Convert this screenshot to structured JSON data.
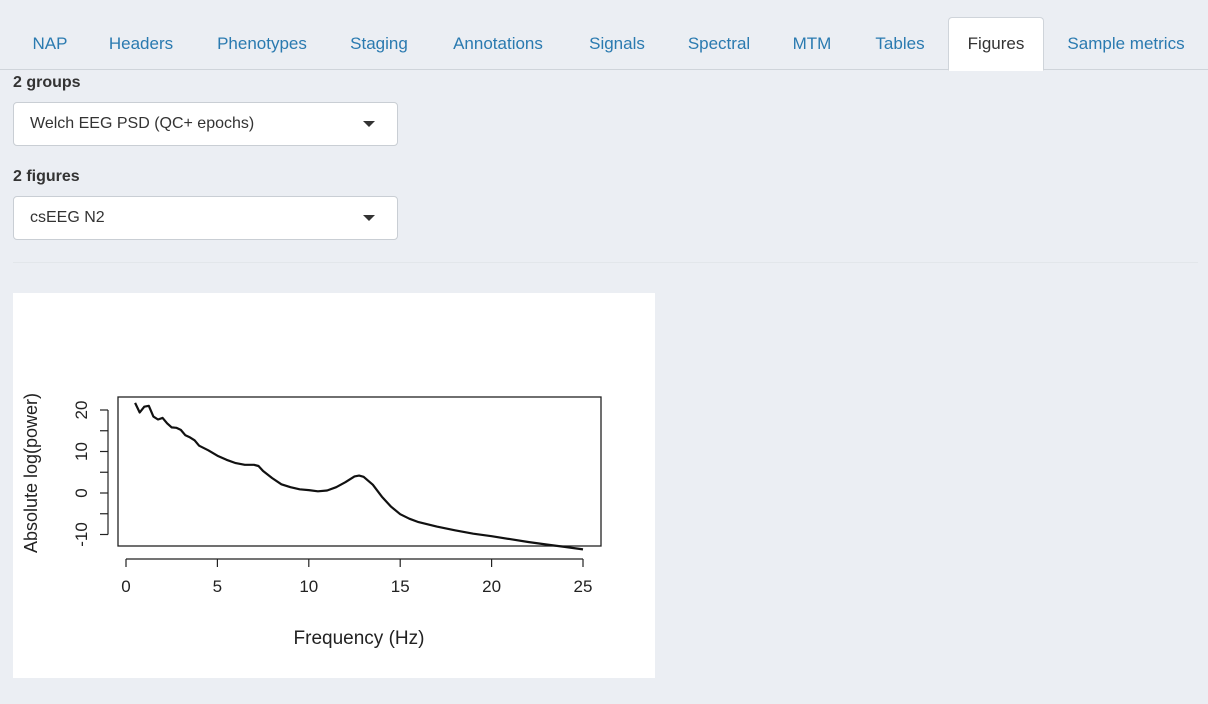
{
  "tabs": [
    {
      "label": "NAP",
      "active": false
    },
    {
      "label": "Headers",
      "active": false
    },
    {
      "label": "Phenotypes",
      "active": false
    },
    {
      "label": "Staging",
      "active": false
    },
    {
      "label": "Annotations",
      "active": false
    },
    {
      "label": "Signals",
      "active": false
    },
    {
      "label": "Spectral",
      "active": false
    },
    {
      "label": "MTM",
      "active": false
    },
    {
      "label": "Tables",
      "active": false
    },
    {
      "label": "Figures",
      "active": true
    },
    {
      "label": "Sample metrics",
      "active": false
    }
  ],
  "groups": {
    "label": "2 groups",
    "selected": "Welch EEG PSD (QC+ epochs)"
  },
  "figures": {
    "label": "2 figures",
    "selected": "csEEG N2"
  },
  "colors": {
    "background": "#ebeef3",
    "tab_link": "#2a7ab0",
    "active_tab_bg": "#ffffff"
  },
  "chart_data": {
    "type": "line",
    "title": "",
    "xlabel": "Frequency (Hz)",
    "ylabel": "Absolute log(power)",
    "xlim": [
      0,
      25
    ],
    "ylim": [
      -12,
      22
    ],
    "xticks": [
      "0",
      "5",
      "10",
      "15",
      "20",
      "25"
    ],
    "yticks": [
      "-10",
      "0",
      "10",
      "20"
    ],
    "grid": false,
    "x": [
      0.5,
      0.75,
      1.0,
      1.25,
      1.5,
      1.75,
      2.0,
      2.25,
      2.5,
      2.75,
      3.0,
      3.25,
      3.5,
      3.75,
      4.0,
      4.5,
      5.0,
      5.5,
      6.0,
      6.5,
      7.0,
      7.25,
      7.5,
      8.0,
      8.5,
      9.0,
      9.5,
      10.0,
      10.5,
      11.0,
      11.5,
      12.0,
      12.5,
      12.75,
      13.0,
      13.5,
      14.0,
      14.5,
      15.0,
      15.5,
      16.0,
      17.0,
      18.0,
      19.0,
      20.0,
      21.0,
      22.0,
      23.0,
      24.0,
      25.0
    ],
    "values": [
      21.7,
      19.4,
      20.8,
      21.0,
      18.4,
      17.7,
      18.1,
      16.8,
      15.8,
      15.7,
      15.2,
      13.9,
      13.4,
      12.7,
      11.4,
      10.3,
      9.0,
      8.0,
      7.2,
      6.8,
      6.8,
      6.5,
      5.3,
      3.6,
      2.1,
      1.4,
      0.9,
      0.7,
      0.4,
      0.6,
      1.4,
      2.6,
      4.0,
      4.2,
      3.9,
      2.0,
      -0.9,
      -3.3,
      -5.1,
      -6.2,
      -7.0,
      -8.1,
      -9.0,
      -9.8,
      -10.4,
      -11.1,
      -11.8,
      -12.4,
      -13.0,
      -13.6
    ]
  }
}
